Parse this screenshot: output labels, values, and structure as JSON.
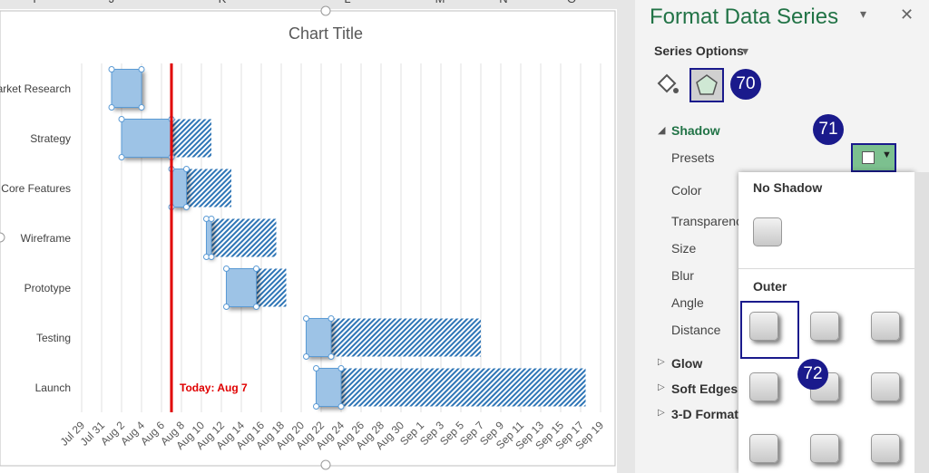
{
  "sheet": {
    "columns": [
      "I",
      "J",
      "K",
      "L",
      "M",
      "N",
      "O"
    ]
  },
  "chart_data": {
    "type": "gantt",
    "title": "Chart Title",
    "categories": [
      "Market Research",
      "Strategy",
      "Core Features",
      "Wireframe",
      "Prototype",
      "Testing",
      "Launch"
    ],
    "series": [
      {
        "values": [
          3,
          4,
          9,
          12.5,
          14.5,
          22.5,
          23.5
        ]
      },
      {
        "color": "#9dc3e6",
        "values": [
          3,
          5,
          1.5,
          0.5,
          3,
          2.5,
          2.5
        ]
      },
      {
        "color": "#2e75b6",
        "values": [
          0,
          4,
          4.5,
          6.5,
          3,
          15,
          24.5
        ]
      }
    ],
    "xlim": [
      0,
      53
    ],
    "xticks": [
      {
        "value": 0,
        "label": "Jul 29"
      },
      {
        "value": 2,
        "label": "Jul 31"
      },
      {
        "value": 4,
        "label": "Aug 2"
      },
      {
        "value": 6,
        "label": "Aug 4"
      },
      {
        "value": 8,
        "label": "Aug 6"
      },
      {
        "value": 10,
        "label": "Aug 8"
      },
      {
        "value": 12,
        "label": "Aug 10"
      },
      {
        "value": 14,
        "label": "Aug 12"
      },
      {
        "value": 16,
        "label": "Aug 14"
      },
      {
        "value": 18,
        "label": "Aug 16"
      },
      {
        "value": 20,
        "label": "Aug 18"
      },
      {
        "value": 22,
        "label": "Aug 20"
      },
      {
        "value": 24,
        "label": "Aug 22"
      },
      {
        "value": 26,
        "label": "Aug 24"
      },
      {
        "value": 28,
        "label": "Aug 26"
      },
      {
        "value": 30,
        "label": "Aug 28"
      },
      {
        "value": 32,
        "label": "Aug 30"
      },
      {
        "value": 34,
        "label": "Sep 1"
      },
      {
        "value": 36,
        "label": "Sep 3"
      },
      {
        "value": 38,
        "label": "Sep 5"
      },
      {
        "value": 40,
        "label": "Sep 7"
      },
      {
        "value": 42,
        "label": "Sep 9"
      },
      {
        "value": 44,
        "label": "Sep 11"
      },
      {
        "value": 46,
        "label": "Sep 13"
      },
      {
        "value": 48,
        "label": "Sep 15"
      },
      {
        "value": 50,
        "label": "Sep 17"
      },
      {
        "value": 52,
        "label": "Sep 19"
      }
    ],
    "grid": true,
    "today": {
      "text": "Today: Aug 7",
      "x": 9,
      "color": "#e00000"
    }
  },
  "pane": {
    "title": "Format Data Series",
    "section": "Series Options",
    "group": "Shadow",
    "properties": [
      "Presets",
      "Color",
      "Transparency",
      "Size",
      "Blur",
      "Angle",
      "Distance"
    ],
    "collapsed": [
      "Glow",
      "Soft Edges",
      "3-D Format"
    ],
    "callouts": [
      "70",
      "71",
      "72"
    ]
  },
  "presets_menu": {
    "none_heading": "No Shadow",
    "outer_heading": "Outer"
  }
}
